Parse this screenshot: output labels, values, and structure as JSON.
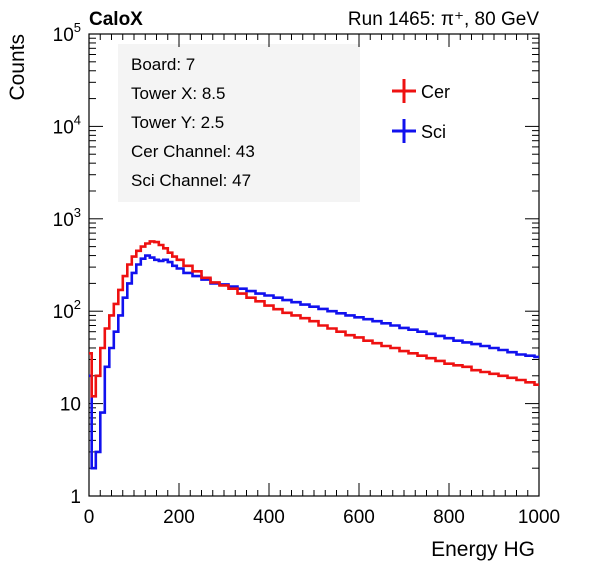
{
  "header": {
    "experiment": "CaloX",
    "run_text": "Run 1465:   π⁺, 80 GeV"
  },
  "info_box": {
    "lines": [
      "Board: 7",
      "Tower X: 8.5",
      "Tower Y: 2.5",
      "Cer Channel: 43",
      "Sci Channel: 47"
    ]
  },
  "chart_data": {
    "type": "line",
    "title": "",
    "xlabel": "Energy HG",
    "ylabel": "Counts",
    "xlim": [
      0,
      1000
    ],
    "ylim": [
      1,
      100000
    ],
    "yscale": "log",
    "grid": false,
    "legend_position": "top-right",
    "x_ticks": [
      0,
      200,
      400,
      600,
      800,
      1000
    ],
    "x_tick_labels": [
      "0",
      "200",
      "400",
      "600",
      "800",
      "1000"
    ],
    "y_ticks": [
      1,
      10,
      100,
      1000,
      10000,
      100000
    ],
    "y_tick_labels": [
      {
        "base": "1",
        "exp": ""
      },
      {
        "base": "10",
        "exp": ""
      },
      {
        "base": "10",
        "exp": "2"
      },
      {
        "base": "10",
        "exp": "3"
      },
      {
        "base": "10",
        "exp": "4"
      },
      {
        "base": "10",
        "exp": "5"
      }
    ],
    "x": [
      2,
      10,
      20,
      30,
      40,
      50,
      60,
      70,
      80,
      90,
      100,
      110,
      120,
      130,
      140,
      150,
      160,
      170,
      180,
      190,
      200,
      220,
      240,
      260,
      280,
      300,
      320,
      340,
      360,
      380,
      400,
      420,
      440,
      460,
      480,
      500,
      520,
      540,
      560,
      580,
      600,
      620,
      640,
      660,
      680,
      700,
      720,
      740,
      760,
      780,
      800,
      820,
      840,
      860,
      880,
      900,
      920,
      940,
      960,
      980,
      1000
    ],
    "series": [
      {
        "name": "Cer",
        "color": "#ee1111",
        "values": [
          35,
          12,
          20,
          40,
          65,
          90,
          120,
          170,
          240,
          320,
          390,
          450,
          500,
          540,
          570,
          560,
          520,
          480,
          430,
          390,
          360,
          310,
          270,
          230,
          205,
          190,
          175,
          155,
          140,
          128,
          115,
          105,
          96,
          90,
          84,
          78,
          70,
          65,
          60,
          55,
          52,
          48,
          45,
          42,
          40,
          37,
          35,
          33,
          31,
          29,
          27,
          26,
          25,
          23,
          22,
          21,
          20,
          19,
          18,
          17,
          16
        ]
      },
      {
        "name": "Sci",
        "color": "#1111ee",
        "values": [
          20,
          2,
          3,
          8,
          25,
          40,
          60,
          90,
          140,
          200,
          260,
          320,
          370,
          400,
          380,
          360,
          350,
          360,
          340,
          310,
          290,
          260,
          240,
          220,
          200,
          195,
          185,
          175,
          165,
          155,
          148,
          140,
          132,
          125,
          118,
          112,
          106,
          100,
          95,
          90,
          86,
          82,
          78,
          74,
          70,
          66,
          63,
          60,
          57,
          54,
          51,
          48,
          46,
          44,
          42,
          40,
          38,
          36,
          34,
          33,
          32
        ]
      }
    ]
  }
}
